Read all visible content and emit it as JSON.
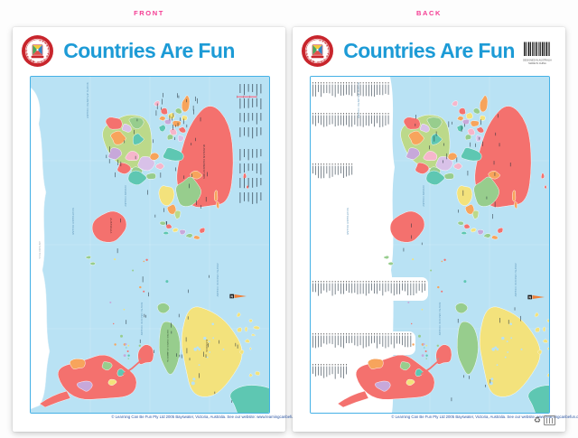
{
  "page": {
    "front_label": "FRONT",
    "back_label": "BACK"
  },
  "poster": {
    "title": "Countries Are Fun",
    "footer": "© Learning Can Be Fun Pty Ltd 2005 Bayswater, Victoria, Australia. See our website: www.learningcanbefun.com.au",
    "logo_text": "LEARNING CAN BE FUN"
  },
  "map": {
    "country_labels": {
      "russia": "RUSSIAN FEDERATION",
      "australia": "AUSTRALIA",
      "canada": "CANADA",
      "united_states": "UNITED STATES OF AMERICA",
      "antarctica": "ANTARCTICA"
    },
    "ocean_labels": [
      "SOUTHERN OCEAN",
      "SOUTH ATLANTIC OCEAN",
      "INDIAN OCEAN",
      "NORTH PACIFIC OCEAN",
      "SOUTH PACIFIC OCEAN"
    ],
    "compass": "N"
  },
  "back": {
    "made_in_line1": "DESIGNED IN AUSTRALIA",
    "made_in_line2": "MADE IN CHINA"
  },
  "colors": {
    "title_blue": "#1d9bd6",
    "label_pink": "#f43b92",
    "ocean_blue": "#b9e2f4",
    "panel_border": "#45b1e6",
    "logo_red": "#c8252c"
  }
}
